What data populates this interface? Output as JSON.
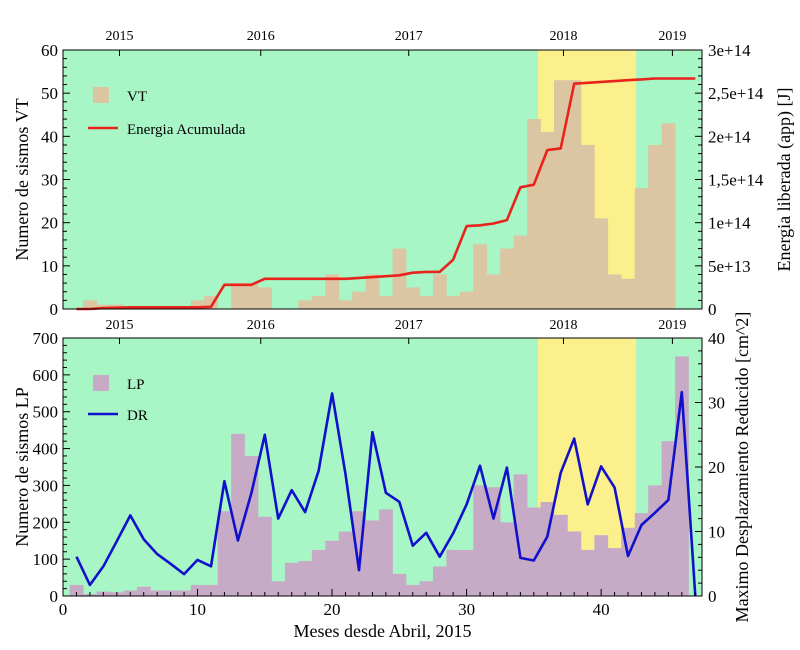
{
  "colors": {
    "background": "#a8f5c6",
    "highlight": "#fbf08c",
    "vt_bars": "#dcc5a2",
    "energy_line": "#e8231c",
    "lp_bars": "#c7abc6",
    "dr_line": "#1111cc"
  },
  "chart_data": [
    {
      "type": "bar",
      "xlim": [
        0,
        47.5
      ],
      "ylim": [
        0,
        60
      ],
      "y2lim": [
        0,
        300000000000000.0
      ],
      "yticks": [
        0,
        10,
        20,
        30,
        40,
        50,
        60
      ],
      "y2ticks": [
        0,
        50000000000000.0,
        100000000000000.0,
        150000000000000.0,
        200000000000000.0,
        250000000000000.0,
        300000000000000.0
      ],
      "y2tick_labels": [
        "0",
        "5e+13",
        "1e+14",
        "1,5e+14",
        "2e+14",
        "2,5e+14",
        "3e+14"
      ],
      "top_year_labels": [
        {
          "x": 4.2,
          "label": "2015"
        },
        {
          "x": 14.7,
          "label": "2016"
        },
        {
          "x": 25.7,
          "label": "2017"
        },
        {
          "x": 37.2,
          "label": "2018"
        },
        {
          "x": 45.3,
          "label": "2019"
        }
      ],
      "ylabel": "Numero de sismos VT",
      "y2label": "Energia liberada (app) [J]",
      "highlight_range": [
        35.3,
        42.6
      ],
      "series": [
        {
          "name": "VT",
          "type": "bar",
          "x": [
            1,
            2,
            3,
            4,
            5,
            6,
            7,
            8,
            9,
            10,
            11,
            12,
            13,
            14,
            15,
            16,
            17,
            18,
            19,
            20,
            21,
            22,
            23,
            24,
            25,
            26,
            27,
            28,
            29,
            30,
            31,
            32,
            33,
            34,
            35,
            36,
            37,
            38,
            39,
            40,
            41,
            42,
            43,
            44,
            45,
            46,
            47
          ],
          "values": [
            0,
            2,
            1,
            1,
            0,
            0,
            0,
            0,
            0,
            2,
            3,
            0,
            6,
            6,
            5,
            0,
            0,
            2,
            3,
            8,
            2,
            4,
            8,
            3,
            14,
            5,
            3,
            8,
            3,
            4,
            15,
            8,
            14,
            17,
            44,
            41,
            53,
            53,
            38,
            21,
            8,
            7,
            28,
            38,
            43,
            0,
            0
          ]
        },
        {
          "name": "Energia Acumulada",
          "type": "line",
          "x": [
            1,
            2,
            3,
            4,
            5,
            6,
            7,
            8,
            9,
            10,
            11,
            12,
            13,
            14,
            15,
            16,
            17,
            18,
            19,
            20,
            21,
            22,
            23,
            24,
            25,
            26,
            27,
            28,
            29,
            30,
            31,
            32,
            33,
            34,
            35,
            36,
            37,
            38,
            39,
            40,
            41,
            42,
            43,
            44,
            45,
            46,
            47
          ],
          "values": [
            0,
            0,
            1000000000000.0,
            1500000000000.0,
            2000000000000.0,
            2000000000000.0,
            2000000000000.0,
            2000000000000.0,
            2000000000000.0,
            2000000000000.0,
            2500000000000.0,
            28000000000000.0,
            28000000000000.0,
            28000000000000.0,
            35000000000000.0,
            35000000000000.0,
            35000000000000.0,
            35000000000000.0,
            35000000000000.0,
            35000000000000.0,
            35000000000000.0,
            36000000000000.0,
            37000000000000.0,
            38000000000000.0,
            39000000000000.0,
            42000000000000.0,
            43000000000000.0,
            43000000000000.0,
            57000000000000.0,
            96000000000000.0,
            97000000000000.0,
            99000000000000.0,
            103000000000000.0,
            141000000000000.0,
            144000000000000.0,
            184000000000000.0,
            186000000000000.0,
            261000000000000.0,
            262000000000000.0,
            263000000000000.0,
            264000000000000.0,
            265000000000000.0,
            266000000000000.0,
            267000000000000.0,
            267000000000000.0,
            267000000000000.0,
            267000000000000.0
          ]
        }
      ]
    },
    {
      "type": "bar",
      "xlim": [
        0,
        47.5
      ],
      "ylim": [
        0,
        700
      ],
      "y2lim": [
        0,
        40
      ],
      "xticks": [
        0,
        10,
        20,
        30,
        40
      ],
      "yticks": [
        0,
        100,
        200,
        300,
        400,
        500,
        600,
        700
      ],
      "y2ticks": [
        0,
        10,
        20,
        30,
        40
      ],
      "top_year_labels": [
        {
          "x": 4.2,
          "label": "2015"
        },
        {
          "x": 14.7,
          "label": "2016"
        },
        {
          "x": 25.7,
          "label": "2017"
        },
        {
          "x": 37.2,
          "label": "2018"
        },
        {
          "x": 45.3,
          "label": "2019"
        }
      ],
      "xlabel": "Meses desde Abril, 2015",
      "ylabel": "Numero de sismos LP",
      "y2label": "Maximo Desplazamiento Reducido [cm^2]",
      "highlight_range": [
        35.3,
        42.6
      ],
      "series": [
        {
          "name": "LP",
          "type": "bar",
          "x": [
            1,
            2,
            3,
            4,
            5,
            6,
            7,
            8,
            9,
            10,
            11,
            12,
            13,
            14,
            15,
            16,
            17,
            18,
            19,
            20,
            21,
            22,
            23,
            24,
            25,
            26,
            27,
            28,
            29,
            30,
            31,
            32,
            33,
            34,
            35,
            36,
            37,
            38,
            39,
            40,
            41,
            42,
            43,
            44,
            45,
            46,
            47
          ],
          "values": [
            30,
            5,
            12,
            10,
            15,
            25,
            15,
            15,
            15,
            30,
            30,
            230,
            440,
            380,
            215,
            40,
            90,
            95,
            125,
            150,
            175,
            230,
            205,
            235,
            60,
            30,
            40,
            80,
            125,
            125,
            300,
            295,
            200,
            330,
            240,
            255,
            220,
            175,
            125,
            165,
            130,
            185,
            225,
            300,
            420,
            650,
            0
          ]
        },
        {
          "name": "DR",
          "type": "line",
          "x": [
            1,
            2,
            3,
            4,
            5,
            6,
            7,
            8,
            9,
            10,
            11,
            12,
            13,
            14,
            15,
            16,
            17,
            18,
            19,
            20,
            21,
            22,
            23,
            24,
            25,
            26,
            27,
            28,
            29,
            30,
            31,
            32,
            33,
            34,
            35,
            36,
            37,
            38,
            39,
            40,
            41,
            42,
            43,
            44,
            45,
            46,
            47
          ],
          "values": [
            6.1,
            1.7,
            4.6,
            8.5,
            12.5,
            8.8,
            6.5,
            5,
            3.4,
            5.6,
            4.6,
            17.8,
            8.6,
            15.9,
            25,
            12,
            16.4,
            13,
            19.4,
            31.4,
            18.9,
            4,
            25.4,
            16,
            14.6,
            7.8,
            9.8,
            6.1,
            9.7,
            14.2,
            20.2,
            12,
            19.9,
            5.9,
            5.5,
            9.2,
            19.1,
            24.4,
            14.2,
            20.1,
            16.8,
            6.2,
            11,
            12.9,
            14.9,
            31.6,
            0
          ]
        }
      ]
    }
  ]
}
